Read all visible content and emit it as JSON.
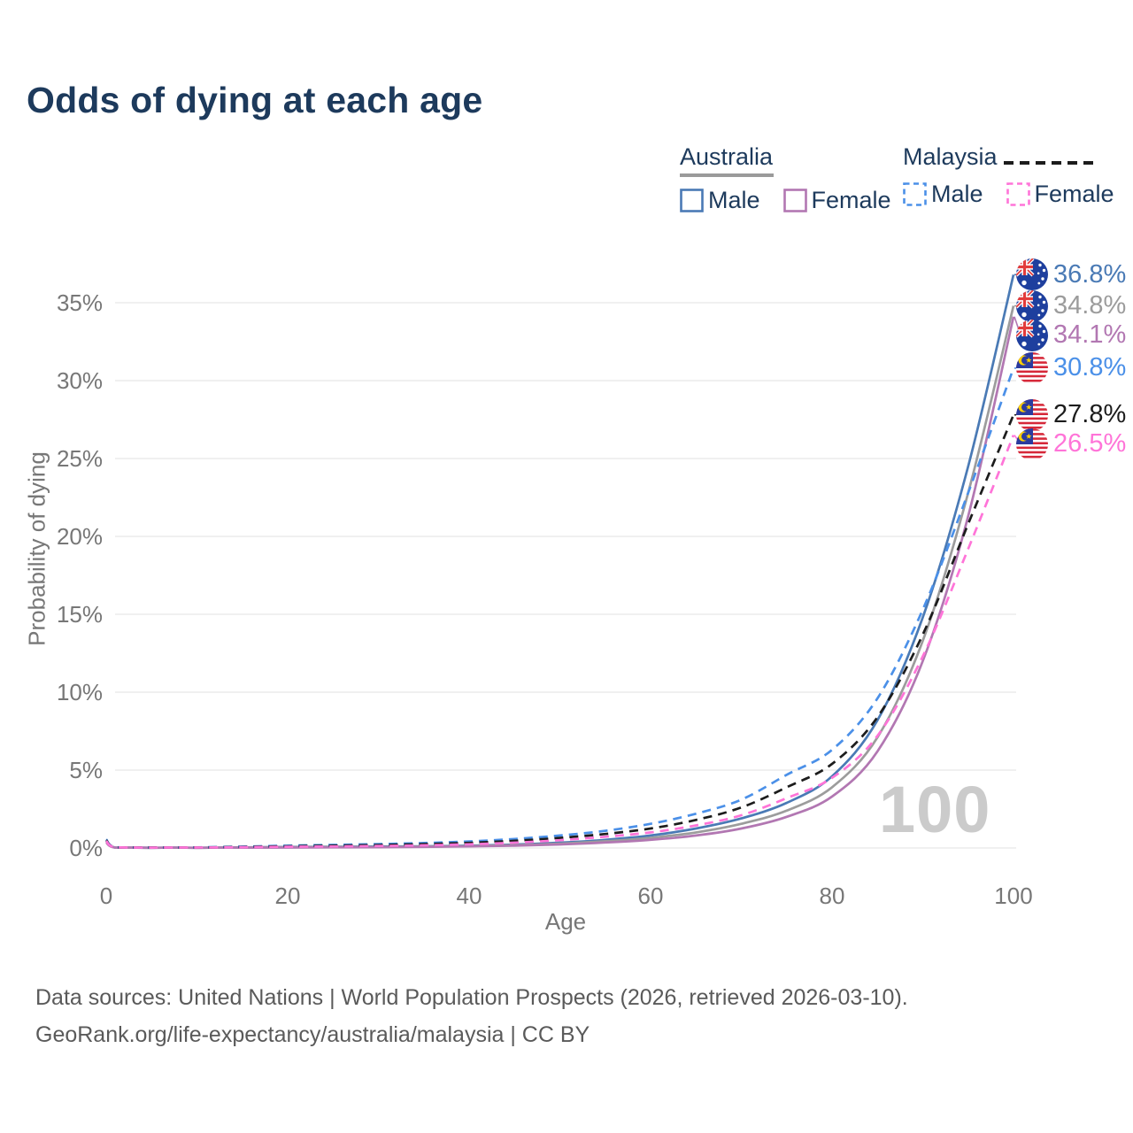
{
  "title": "Odds of dying at each age",
  "watermark": "100",
  "legend": {
    "australia": {
      "label": "Australia",
      "male": "Male",
      "female": "Female",
      "underline_color": "#9a9a9a",
      "line_style": "solid"
    },
    "malaysia": {
      "label": "Malaysia",
      "male": "Male",
      "female": "Female",
      "underline_color": "#1c1c1c",
      "line_style": "dashed"
    }
  },
  "chart_data": {
    "type": "line",
    "title": "Odds of dying at each age",
    "xlabel": "Age",
    "ylabel": "Probability of dying",
    "xlim": [
      0,
      100
    ],
    "ylim": [
      0,
      37
    ],
    "grid": "horizontal",
    "x_ticks": [
      {
        "value": 0,
        "label": "0"
      },
      {
        "value": 20,
        "label": "20"
      },
      {
        "value": 40,
        "label": "40"
      },
      {
        "value": 60,
        "label": "60"
      },
      {
        "value": 80,
        "label": "80"
      },
      {
        "value": 100,
        "label": "100"
      }
    ],
    "y_ticks": [
      {
        "value": 0,
        "label": "0%"
      },
      {
        "value": 5,
        "label": "5%"
      },
      {
        "value": 10,
        "label": "10%"
      },
      {
        "value": 15,
        "label": "15%"
      },
      {
        "value": 20,
        "label": "20%"
      },
      {
        "value": 25,
        "label": "25%"
      },
      {
        "value": 30,
        "label": "30%"
      },
      {
        "value": 35,
        "label": "35%"
      }
    ],
    "x": [
      0,
      1,
      5,
      10,
      15,
      20,
      25,
      30,
      35,
      40,
      45,
      50,
      55,
      60,
      65,
      70,
      75,
      80,
      85,
      90,
      95,
      100
    ],
    "series": [
      {
        "id": "australia-male",
        "name": "Australia Male",
        "flag": "au",
        "dash": false,
        "color": "#4a7ab5",
        "end_label": "36.8%",
        "end_value": 36.8,
        "values": [
          0.45,
          0.03,
          0.01,
          0.01,
          0.04,
          0.07,
          0.08,
          0.09,
          0.11,
          0.15,
          0.22,
          0.34,
          0.52,
          0.8,
          1.25,
          1.9,
          2.9,
          4.6,
          8.2,
          14.8,
          24.5,
          36.8
        ]
      },
      {
        "id": "australia-both",
        "name": "Australia Both sexes",
        "flag": "au",
        "dash": false,
        "color": "#9c9c9c",
        "end_label": "34.8%",
        "end_value": 34.8,
        "values": [
          0.4,
          0.03,
          0.01,
          0.01,
          0.03,
          0.05,
          0.06,
          0.07,
          0.09,
          0.12,
          0.18,
          0.28,
          0.43,
          0.65,
          1.0,
          1.55,
          2.4,
          3.9,
          7.1,
          13.3,
          22.8,
          34.8
        ]
      },
      {
        "id": "australia-female",
        "name": "Australia Female",
        "flag": "au",
        "dash": false,
        "color": "#b277b2",
        "end_label": "34.1%",
        "end_value": 34.1,
        "values": [
          0.35,
          0.02,
          0.01,
          0.01,
          0.02,
          0.03,
          0.04,
          0.05,
          0.07,
          0.1,
          0.15,
          0.23,
          0.35,
          0.52,
          0.8,
          1.25,
          2.0,
          3.3,
          6.2,
          12.0,
          21.3,
          34.1
        ]
      },
      {
        "id": "malaysia-male",
        "name": "Malaysia Male",
        "flag": "my",
        "dash": true,
        "color": "#4b90e8",
        "end_label": "30.8%",
        "end_value": 30.8,
        "values": [
          0.55,
          0.05,
          0.03,
          0.04,
          0.09,
          0.15,
          0.2,
          0.25,
          0.32,
          0.42,
          0.58,
          0.8,
          1.1,
          1.55,
          2.2,
          3.1,
          4.7,
          6.3,
          9.6,
          15.3,
          22.8,
          30.8
        ]
      },
      {
        "id": "malaysia-both",
        "name": "Malaysia Both sexes",
        "flag": "my",
        "dash": true,
        "color": "#1c1c1c",
        "end_label": "27.8%",
        "end_value": 27.8,
        "values": [
          0.5,
          0.04,
          0.03,
          0.03,
          0.07,
          0.11,
          0.15,
          0.19,
          0.25,
          0.33,
          0.46,
          0.65,
          0.9,
          1.25,
          1.8,
          2.6,
          3.9,
          5.4,
          8.4,
          13.7,
          20.8,
          27.8
        ]
      },
      {
        "id": "malaysia-female",
        "name": "Malaysia Female",
        "flag": "my",
        "dash": true,
        "color": "#ff74d8",
        "end_label": "26.5%",
        "end_value": 26.5,
        "values": [
          0.45,
          0.04,
          0.02,
          0.03,
          0.05,
          0.08,
          0.1,
          0.13,
          0.17,
          0.24,
          0.34,
          0.5,
          0.72,
          1.0,
          1.45,
          2.1,
          3.2,
          4.5,
          7.2,
          12.3,
          19.2,
          26.5
        ]
      }
    ]
  },
  "footer": {
    "line1": "Data sources: United Nations | World Population Prospects (2026, retrieved 2026-03-10).",
    "line2": "GeoRank.org/life-expectancy/australia/malaysia | CC BY"
  }
}
